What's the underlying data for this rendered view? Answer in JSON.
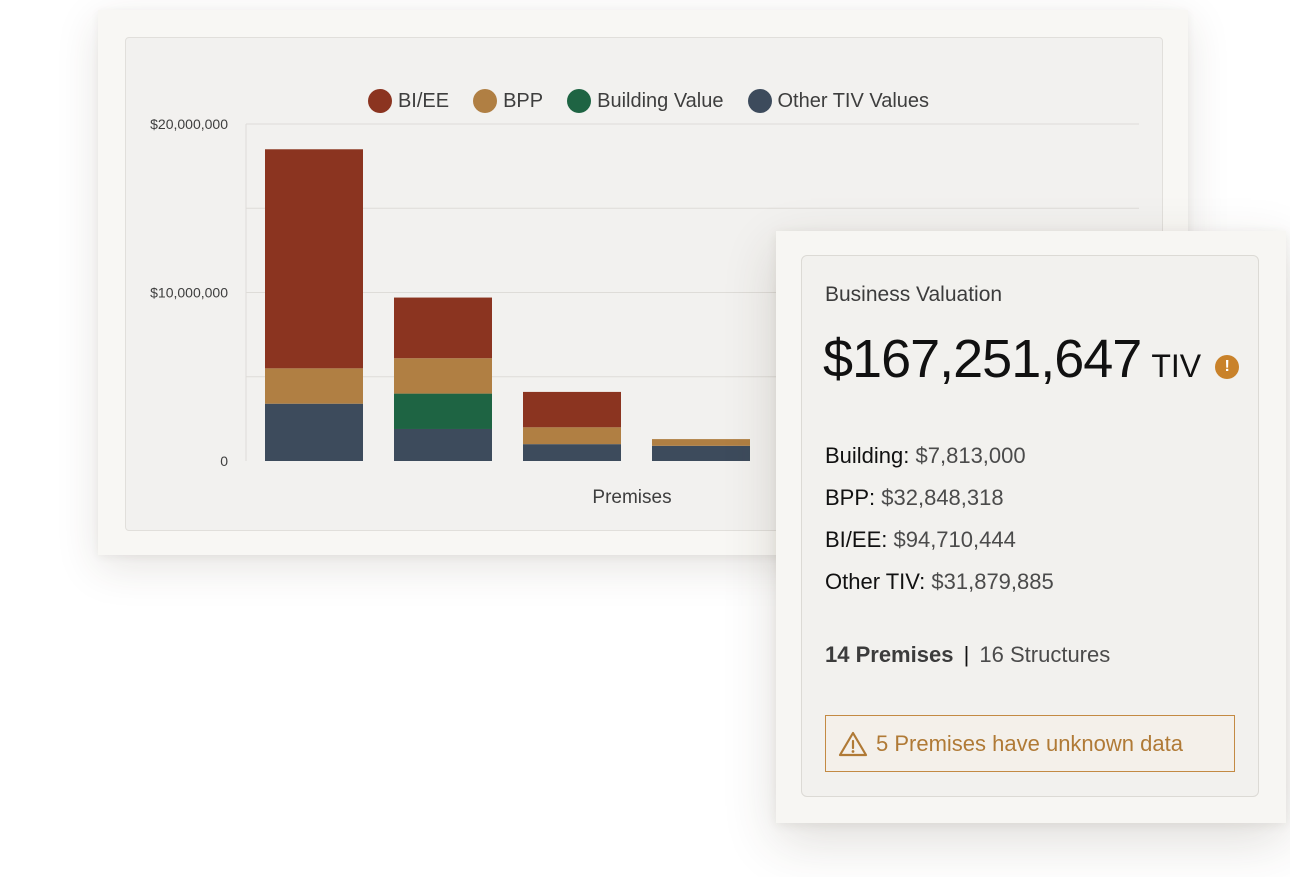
{
  "chart_data": {
    "type": "bar",
    "stacked": true,
    "categories": [
      "",
      "",
      "",
      ""
    ],
    "series": [
      {
        "name": "BI/EE",
        "color": "#8b3420",
        "values": [
          13000000,
          3600000,
          2100000,
          0
        ]
      },
      {
        "name": "BPP",
        "color": "#b07f43",
        "values": [
          2100000,
          2100000,
          1000000,
          400000
        ]
      },
      {
        "name": "Building Value",
        "color": "#1e6443",
        "values": [
          0,
          2100000,
          0,
          0
        ]
      },
      {
        "name": "Other TIV Values",
        "color": "#3d4b5c",
        "values": [
          3400000,
          1900000,
          1000000,
          900000
        ]
      }
    ],
    "legend_order": [
      "BI/EE",
      "BPP",
      "Building Value",
      "Other TIV Values"
    ],
    "ylim": [
      0,
      20000000
    ],
    "yticks": [
      {
        "value": 0,
        "label": "0"
      },
      {
        "value": 10000000,
        "label": "$10,000,000"
      },
      {
        "value": 20000000,
        "label": "$20,000,000"
      }
    ],
    "ygrid": [
      5000000,
      10000000,
      15000000,
      20000000
    ],
    "xlabel": "Premises",
    "ylabel": "",
    "title": "",
    "grid": true,
    "legend_placement": "top-center"
  },
  "valuation": {
    "title": "Business Valuation",
    "tiv_value": "$167,251,647",
    "tiv_unit": "TIV",
    "warning_icon": "exclamation-icon",
    "breakdown": [
      {
        "label": "Building:",
        "value": "$7,813,000"
      },
      {
        "label": "BPP:",
        "value": "$32,848,318"
      },
      {
        "label": "BI/EE:",
        "value": "$94,710,444"
      },
      {
        "label": "Other TIV:",
        "value": "$31,879,885"
      }
    ],
    "premises_count": "14 Premises",
    "separator": "|",
    "structures_count": "16 Structures",
    "alert_icon": "warning-triangle-icon",
    "alert_text": "5 Premises have unknown data",
    "accent_color": "#c38a43"
  }
}
